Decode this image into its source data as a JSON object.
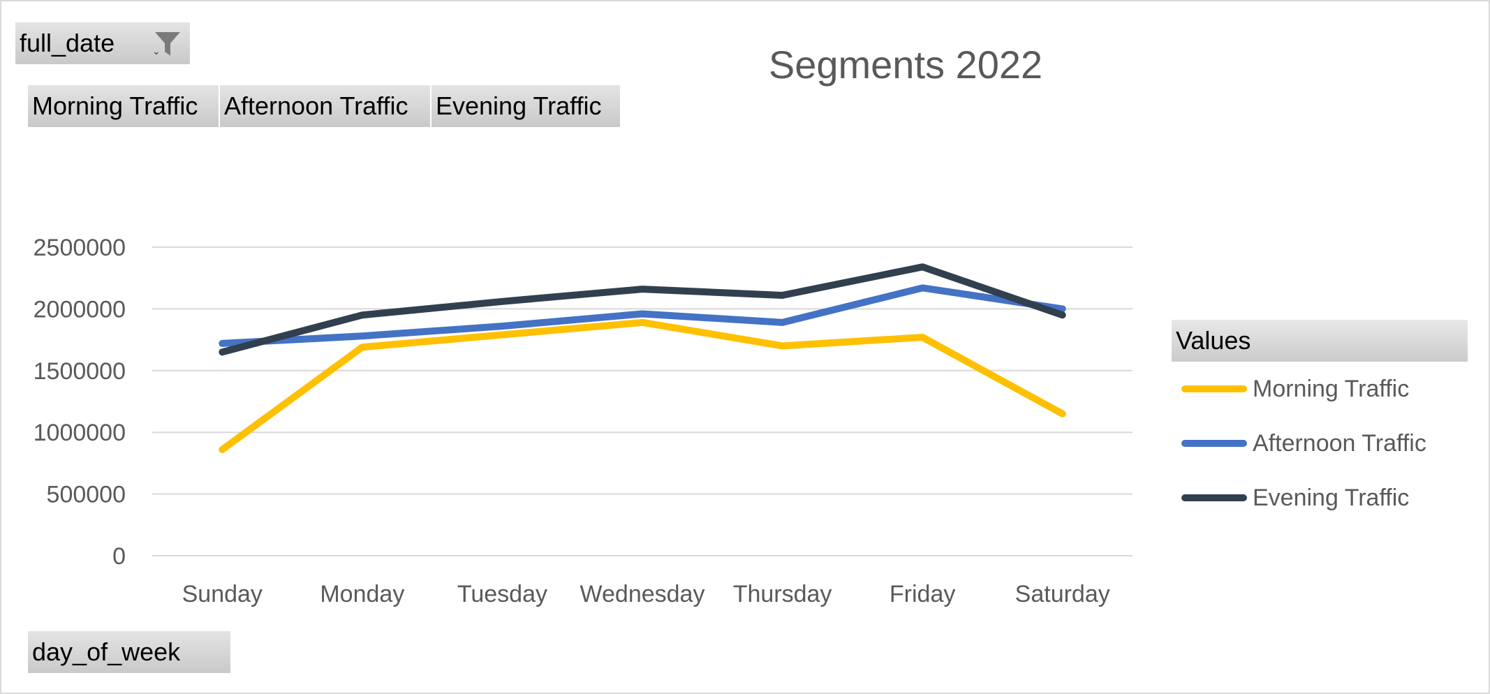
{
  "pivot": {
    "filter_field": "full_date",
    "value_fields": [
      "Morning Traffic",
      "Afternoon Traffic",
      "Evening Traffic"
    ],
    "axis_field": "day_of_week"
  },
  "legend": {
    "header": "Values"
  },
  "icons": {
    "filter": "funnel-icon",
    "dropdown": "dropdown-arrow-icon"
  },
  "chart_data": {
    "type": "line",
    "title": "Segments 2022",
    "xlabel": "",
    "ylabel": "",
    "categories": [
      "Sunday",
      "Monday",
      "Tuesday",
      "Wednesday",
      "Thursday",
      "Friday",
      "Saturday"
    ],
    "ylim": [
      0,
      2500000
    ],
    "yticks": [
      0,
      500000,
      1000000,
      1500000,
      2000000,
      2500000
    ],
    "grid": true,
    "legend_position": "right",
    "series": [
      {
        "name": "Morning Traffic",
        "color": "#FFC000",
        "values": [
          860000,
          1690000,
          1790000,
          1890000,
          1700000,
          1770000,
          1150000
        ]
      },
      {
        "name": "Afternoon Traffic",
        "color": "#4472C4",
        "values": [
          1720000,
          1780000,
          1860000,
          1960000,
          1890000,
          2170000,
          2000000
        ]
      },
      {
        "name": "Evening Traffic",
        "color": "#323F4F",
        "values": [
          1650000,
          1950000,
          2060000,
          2160000,
          2110000,
          2340000,
          1950000
        ]
      }
    ]
  }
}
